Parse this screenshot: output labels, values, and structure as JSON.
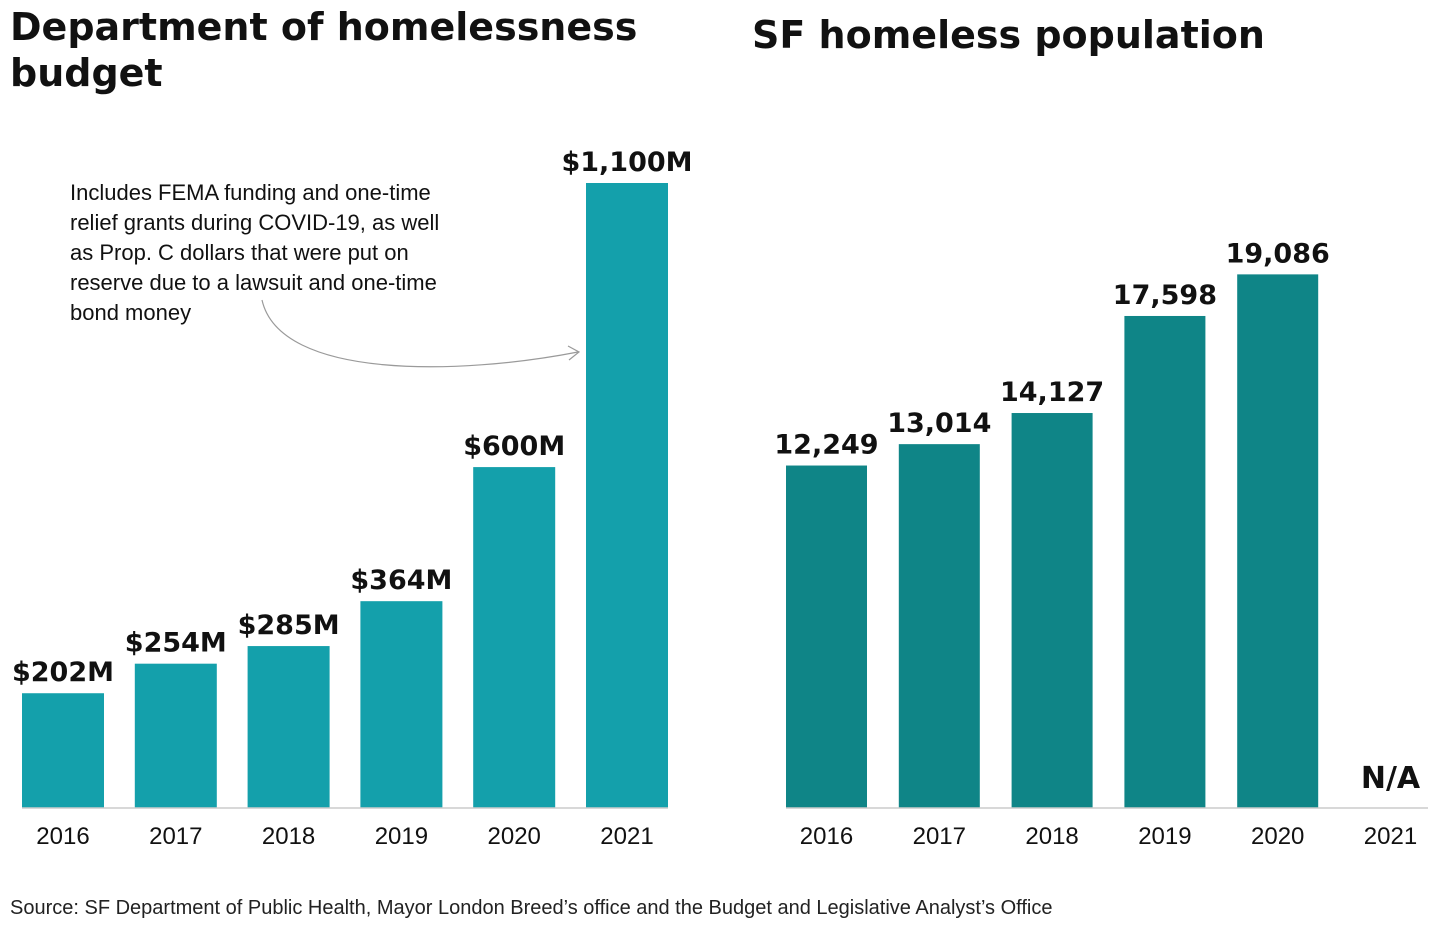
{
  "source": "Source: SF Department of Public Health, Mayor London Breed’s office and the Budget and Legislative Analyst’s Office",
  "colors": {
    "budget_bar": "#14a0ab",
    "population_bar": "#0f8587",
    "axis": "#cccccc",
    "text": "#111111",
    "annotation_arrow": "#9a9a9a"
  },
  "chart_data": [
    {
      "type": "bar",
      "title": "Department of homelessness budget",
      "categories": [
        "2016",
        "2017",
        "2018",
        "2019",
        "2020",
        "2021"
      ],
      "values": [
        202,
        254,
        285,
        364,
        600,
        1100
      ],
      "value_labels": [
        "$202M",
        "$254M",
        "$285M",
        "$364M",
        "$600M",
        "$1,100M"
      ],
      "unit": "millions of dollars",
      "ylim": [
        0,
        1100
      ],
      "grid": false,
      "annotation": {
        "text_lines": [
          "Includes FEMA funding and one-time",
          "relief grants during COVID-19, as well",
          "as Prop. C dollars that were put on",
          "reserve due to a lawsuit and one-time",
          "bond money"
        ],
        "target_category": "2021"
      }
    },
    {
      "type": "bar",
      "title": "SF homeless population",
      "categories": [
        "2016",
        "2017",
        "2018",
        "2019",
        "2020",
        "2021"
      ],
      "values": [
        12249,
        13014,
        14127,
        17598,
        19086,
        null
      ],
      "value_labels": [
        "12,249",
        "13,014",
        "14,127",
        "17,598",
        "19,086",
        "N/A"
      ],
      "ylim": [
        0,
        24500
      ],
      "grid": false
    }
  ]
}
